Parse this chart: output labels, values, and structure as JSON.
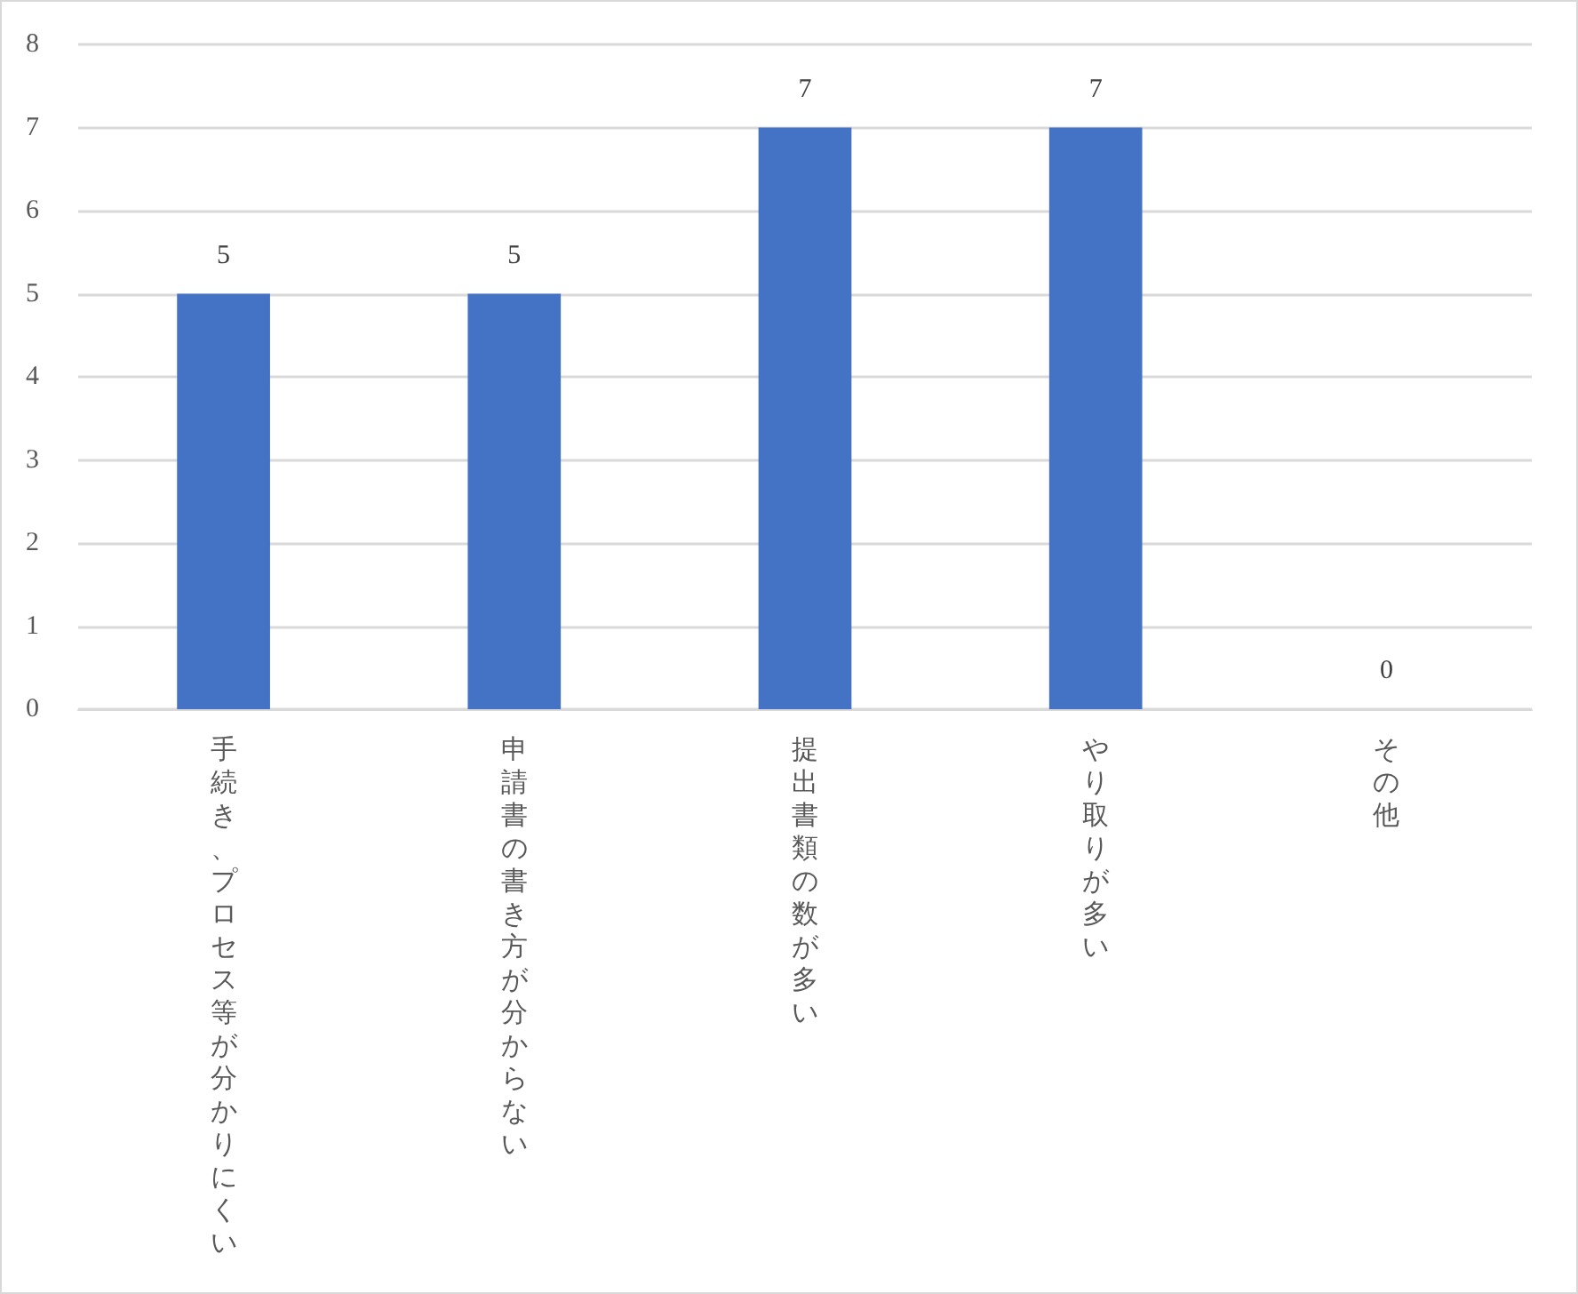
{
  "chart_data": {
    "type": "bar",
    "categories": [
      "手続き、プロセス等が分かりにくい",
      "申請書の書き方が分からない",
      "提出書類の数が多い",
      "やり取りが多い",
      "その他"
    ],
    "values": [
      5,
      5,
      7,
      7,
      0
    ],
    "color": "#4472c4",
    "ylim": [
      0,
      8
    ],
    "yticks": [
      0,
      1,
      2,
      3,
      4,
      5,
      6,
      7,
      8
    ],
    "grid": "y",
    "data_labels": true
  }
}
